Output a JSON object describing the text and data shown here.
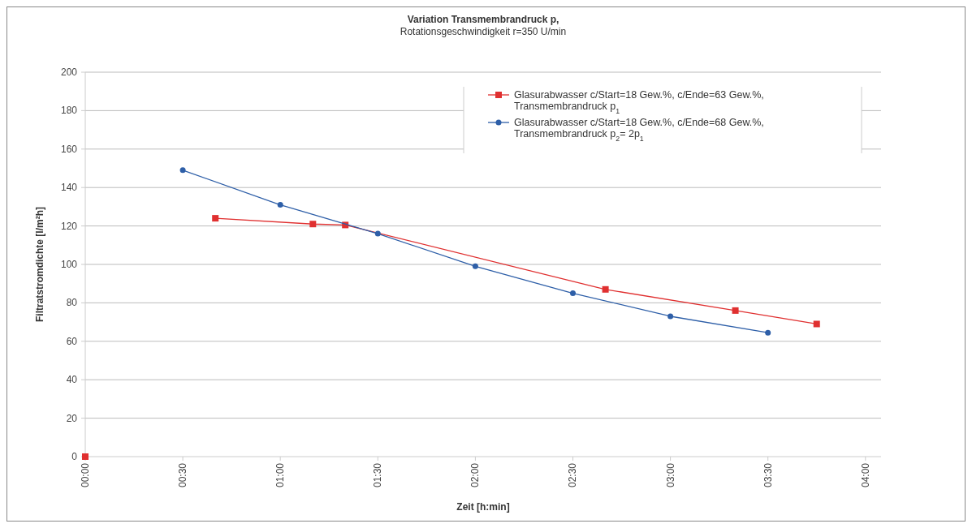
{
  "chart_data": {
    "type": "line",
    "title": "Variation Transmembrandruck p,",
    "subtitle": "Rotationsgeschwindigkeit r=350 U/min",
    "xlabel": "Zeit [h:min]",
    "ylabel": "Filtratstromdichte [l/m²h]",
    "series": [
      {
        "name": "Glasurabwasser c/Start=18 Gew.%, c/Ende=63 Gew.%, Transmembrandruck p$_{1}$",
        "color": "#e03030",
        "marker": "square",
        "x": [
          0,
          0.5,
          0.667,
          1.167,
          1.333,
          2.667,
          3.333,
          3.75
        ],
        "values": [
          0,
          null,
          124,
          121,
          120.5,
          87,
          76,
          69
        ]
      },
      {
        "name": "Glasurabwasser c/Start=18 Gew.%, c/Ende=68 Gew.%, Transmembrandruck p$_{2}$= 2p$_{1}$",
        "color": "#2e5fa8",
        "marker": "circle",
        "x": [
          0.5,
          1,
          1.5,
          2,
          2.5,
          3,
          3.5
        ],
        "values": [
          149,
          131,
          116,
          99,
          85,
          73,
          64.5
        ]
      }
    ],
    "xlim": [
      0,
      4.08
    ],
    "xticks": [
      {
        "value": 0,
        "label": "00:00"
      },
      {
        "value": 0.5,
        "label": "00:30"
      },
      {
        "value": 1,
        "label": "01:00"
      },
      {
        "value": 1.5,
        "label": "01:30"
      },
      {
        "value": 2,
        "label": "02:00"
      },
      {
        "value": 2.5,
        "label": "02:30"
      },
      {
        "value": 3,
        "label": "03:00"
      },
      {
        "value": 3.5,
        "label": "03:30"
      },
      {
        "value": 4,
        "label": "04:00"
      }
    ],
    "ylim": [
      0,
      200
    ],
    "yticks": [
      0,
      20,
      40,
      60,
      80,
      100,
      120,
      140,
      160,
      180,
      200
    ],
    "grid": "y",
    "legend": "top right",
    "line_style": "solid"
  }
}
